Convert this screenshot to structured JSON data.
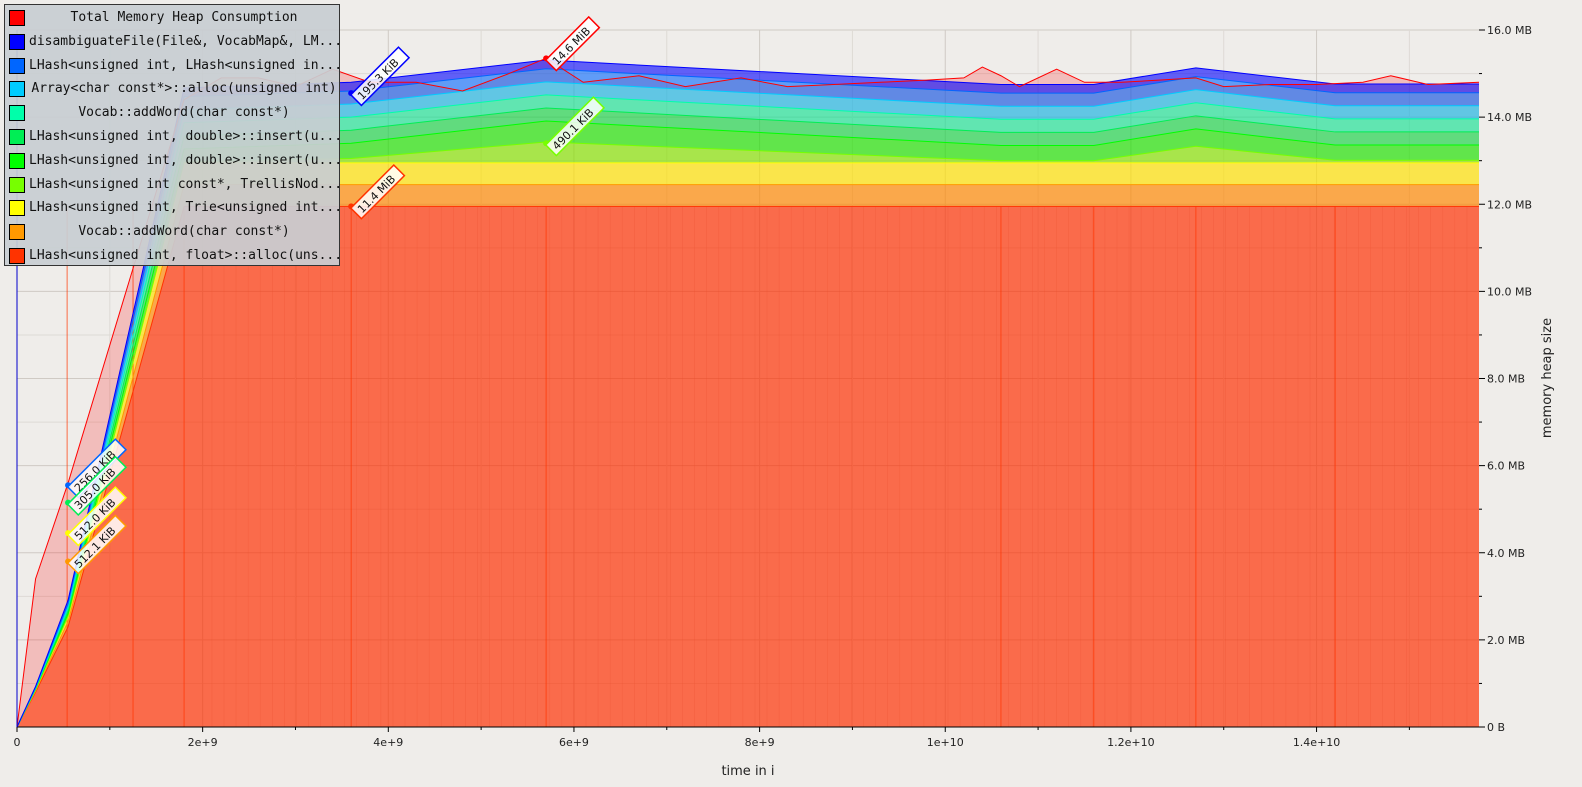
{
  "chart_data": {
    "type": "area",
    "xlabel": "time in i",
    "ylabel": "memory heap size",
    "xlim": [
      0,
      15750000000
    ],
    "ylim": [
      0,
      16
    ],
    "x_ticks": [
      {
        "value": 0,
        "label": "0"
      },
      {
        "value": 2000000000,
        "label": "2e+9"
      },
      {
        "value": 4000000000,
        "label": "4e+9"
      },
      {
        "value": 6000000000,
        "label": "6e+9"
      },
      {
        "value": 8000000000,
        "label": "8e+9"
      },
      {
        "value": 10000000000,
        "label": "1e+10"
      },
      {
        "value": 12000000000,
        "label": "1.2e+10"
      },
      {
        "value": 14000000000,
        "label": "1.4e+10"
      }
    ],
    "y_ticks": [
      {
        "value": 0,
        "label": "0 B"
      },
      {
        "value": 2,
        "label": "2.0 MB"
      },
      {
        "value": 4,
        "label": "4.0 MB"
      },
      {
        "value": 6,
        "label": "6.0 MB"
      },
      {
        "value": 8,
        "label": "8.0 MB"
      },
      {
        "value": 10,
        "label": "10.0 MB"
      },
      {
        "value": 12,
        "label": "12.0 MB"
      },
      {
        "value": 14,
        "label": "14.0 MB"
      },
      {
        "value": 16,
        "label": "16.0 MB"
      }
    ],
    "grid": true,
    "legend_position": "top-left",
    "x": [
      0,
      200000000,
      550000000,
      1800000000,
      3600000000,
      5700000000,
      10600000000,
      11600000000,
      12700000000,
      14200000000,
      15750000000
    ],
    "total": {
      "name": "Total Memory Heap Consumption",
      "color": "#ff0000",
      "points": [
        [
          0,
          0
        ],
        [
          200000000,
          3.4
        ],
        [
          550000000,
          5.6
        ],
        [
          1800000000,
          14.4
        ],
        [
          2200000000,
          14.9
        ],
        [
          2600000000,
          14.9
        ],
        [
          3000000000,
          14.7
        ],
        [
          3400000000,
          15.1
        ],
        [
          3800000000,
          14.8
        ],
        [
          4300000000,
          14.8
        ],
        [
          4800000000,
          14.6
        ],
        [
          5300000000,
          15.0
        ],
        [
          5700000000,
          15.35
        ],
        [
          6100000000,
          14.8
        ],
        [
          6700000000,
          14.95
        ],
        [
          7200000000,
          14.7
        ],
        [
          7800000000,
          14.9
        ],
        [
          8300000000,
          14.7
        ],
        [
          8800000000,
          14.75
        ],
        [
          9300000000,
          14.8
        ],
        [
          9800000000,
          14.85
        ],
        [
          10200000000,
          14.9
        ],
        [
          10400000000,
          15.15
        ],
        [
          10600000000,
          14.95
        ],
        [
          10800000000,
          14.7
        ],
        [
          11200000000,
          15.1
        ],
        [
          11500000000,
          14.8
        ],
        [
          11900000000,
          14.8
        ],
        [
          12300000000,
          14.85
        ],
        [
          12700000000,
          14.9
        ],
        [
          13000000000,
          14.7
        ],
        [
          13500000000,
          14.75
        ],
        [
          14000000000,
          14.75
        ],
        [
          14500000000,
          14.8
        ],
        [
          14800000000,
          14.95
        ],
        [
          15200000000,
          14.75
        ],
        [
          15750000000,
          14.8
        ]
      ]
    },
    "series": [
      {
        "name": "LHash<unsigned int, float>::alloc(uns...",
        "color": "#ff3300",
        "values": [
          0,
          0.8,
          2.3,
          11.95,
          11.95,
          11.95,
          11.95,
          11.95,
          11.95,
          11.95,
          11.95
        ]
      },
      {
        "name": "Vocab::addWord(char const*)",
        "color": "#ff9900",
        "values": [
          0,
          0.03,
          0.12,
          0.5,
          0.5,
          0.5,
          0.5,
          0.5,
          0.5,
          0.5,
          0.5
        ]
      },
      {
        "name": "LHash<unsigned int, Trie<unsigned int...",
        "color": "#ffff00",
        "values": [
          0,
          0.03,
          0.12,
          0.5,
          0.5,
          0.5,
          0.5,
          0.5,
          0.5,
          0.5,
          0.5
        ]
      },
      {
        "name": "LHash<unsigned int const*, TrellisNod...",
        "color": "#77ff00",
        "values": [
          0,
          0.0,
          0.0,
          0.02,
          0.1,
          0.48,
          0.05,
          0.05,
          0.38,
          0.06,
          0.06
        ]
      },
      {
        "name": "LHash<unsigned int, double>::insert(u...",
        "color": "#00ff00",
        "values": [
          0,
          0.01,
          0.06,
          0.3,
          0.35,
          0.48,
          0.35,
          0.35,
          0.4,
          0.35,
          0.35
        ]
      },
      {
        "name": "LHash<unsigned int, double>::insert(u...",
        "color": "#00ee55",
        "values": [
          0,
          0.01,
          0.06,
          0.3,
          0.3,
          0.3,
          0.3,
          0.3,
          0.3,
          0.3,
          0.3
        ]
      },
      {
        "name": "Vocab::addWord(char const*)",
        "color": "#00ffaa",
        "values": [
          0,
          0.01,
          0.06,
          0.3,
          0.3,
          0.3,
          0.3,
          0.3,
          0.3,
          0.3,
          0.3
        ]
      },
      {
        "name": "Array<char const*>::alloc(unsigned int)",
        "color": "#00ccff",
        "values": [
          0,
          0.01,
          0.05,
          0.3,
          0.3,
          0.3,
          0.3,
          0.3,
          0.3,
          0.3,
          0.3
        ]
      },
      {
        "name": "LHash<unsigned int, LHash<unsigned in...",
        "color": "#0066ff",
        "values": [
          0,
          0.01,
          0.06,
          0.3,
          0.3,
          0.3,
          0.3,
          0.3,
          0.3,
          0.3,
          0.3
        ]
      },
      {
        "name": "disambiguateFile(File&, VocabMap&, LM...",
        "color": "#0000ff",
        "values": [
          0,
          0.02,
          0.08,
          0.2,
          0.2,
          0.2,
          0.2,
          0.2,
          0.2,
          0.2,
          0.2
        ]
      }
    ],
    "legend": [
      {
        "label": "Total Memory Heap Consumption",
        "color": "#ff0000"
      },
      {
        "label": "disambiguateFile(File&, VocabMap&, LM...",
        "color": "#0000ff"
      },
      {
        "label": "LHash<unsigned int, LHash<unsigned in...",
        "color": "#0066ff"
      },
      {
        "label": "Array<char const*>::alloc(unsigned int)",
        "color": "#00ccff"
      },
      {
        "label": "Vocab::addWord(char const*)",
        "color": "#00ffaa"
      },
      {
        "label": "LHash<unsigned int, double>::insert(u...",
        "color": "#00ee55"
      },
      {
        "label": "LHash<unsigned int, double>::insert(u...",
        "color": "#00ff00"
      },
      {
        "label": "LHash<unsigned int const*, TrellisNod...",
        "color": "#77ff00"
      },
      {
        "label": "LHash<unsigned int, Trie<unsigned int...",
        "color": "#ffff00"
      },
      {
        "label": "Vocab::addWord(char const*)",
        "color": "#ff9900"
      },
      {
        "label": "LHash<unsigned int, float>::alloc(uns...",
        "color": "#ff3300"
      }
    ],
    "annotations": [
      {
        "text": "14.6 MiB",
        "x": 5700000000,
        "y": 15.35,
        "color": "#ff0000"
      },
      {
        "text": "195.3 KiB",
        "x": 3600000000,
        "y": 14.55,
        "color": "#0000ff"
      },
      {
        "text": "490.1 KiB",
        "x": 5700000000,
        "y": 13.4,
        "color": "#77ff00"
      },
      {
        "text": "11.4 MiB",
        "x": 3600000000,
        "y": 11.95,
        "color": "#ff3300"
      },
      {
        "text": "256.0 KiB",
        "x": 550000000,
        "y": 5.55,
        "color": "#0066ff"
      },
      {
        "text": "305.0 KiB",
        "x": 550000000,
        "y": 5.15,
        "color": "#00ee55"
      },
      {
        "text": "512.0 KiB",
        "x": 550000000,
        "y": 4.45,
        "color": "#ffff00"
      },
      {
        "text": "512.1 KiB",
        "x": 550000000,
        "y": 3.8,
        "color": "#ff9900"
      }
    ],
    "snapshots": [
      540000000,
      1250000000,
      1800000000,
      3600000000,
      5700000000,
      10600000000,
      11600000000,
      12700000000,
      14200000000
    ]
  }
}
